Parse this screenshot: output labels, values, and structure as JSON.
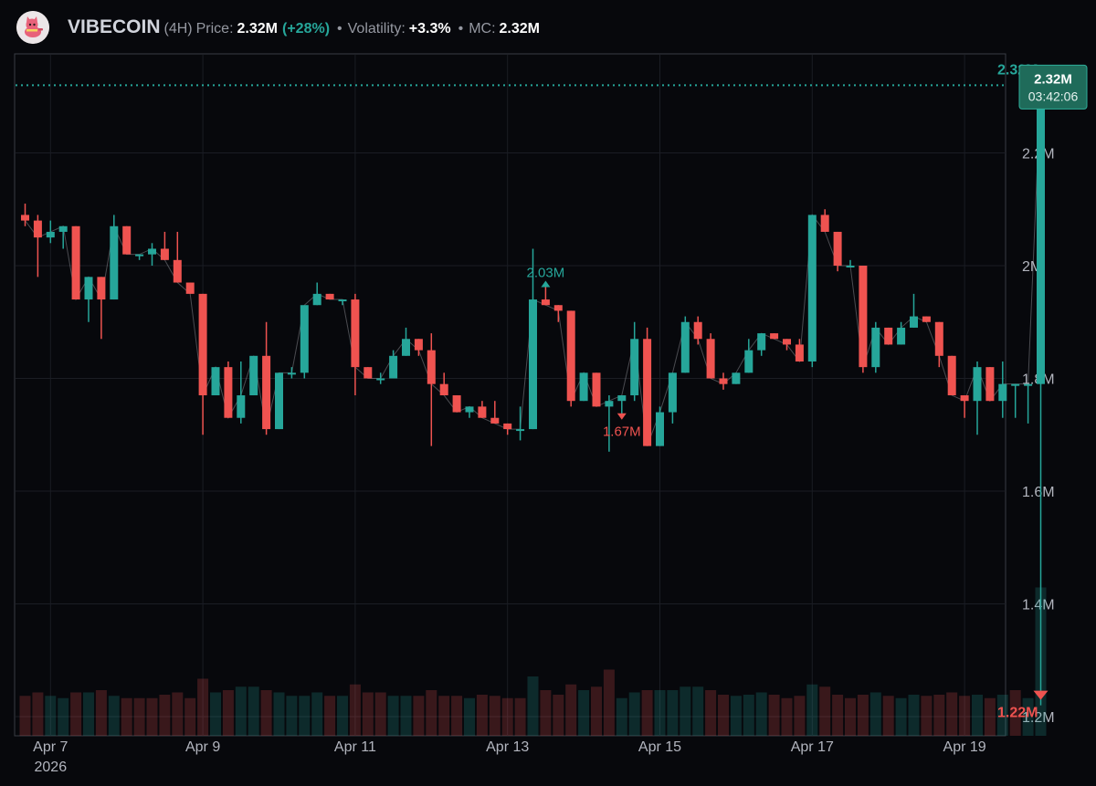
{
  "header": {
    "name": "VIBECOIN",
    "interval": "(4H)",
    "price_label": "Price:",
    "price_value": "2.32M",
    "change": "(+28%)",
    "volatility_label": "Volatility:",
    "volatility_value": "+3.3%",
    "mc_label": "MC:",
    "mc_value": "2.32M",
    "avatar_icon": "cat-mascot-icon",
    "separator": "•"
  },
  "colors": {
    "up": "#26a69a",
    "down": "#ef5350",
    "background": "#07080c",
    "grid": "#1b1d24",
    "axis_text": "#b2b5be",
    "badge_bg": "#1f6b5a"
  },
  "chart_data": {
    "type": "candlestick",
    "interval": "4H",
    "y_ticks": [
      {
        "value": 2200000,
        "label": "2.2M"
      },
      {
        "value": 2000000,
        "label": "2M"
      },
      {
        "value": 1800000,
        "label": "1.8M"
      },
      {
        "value": 1600000,
        "label": "1.6M"
      },
      {
        "value": 1400000,
        "label": "1.4M"
      },
      {
        "value": 1200000,
        "label": "1.2M"
      }
    ],
    "ylim": [
      1170000,
      2380000
    ],
    "x_ticks": [
      {
        "label": "Apr 7",
        "sublabel": "2026",
        "date": "2026-04-07"
      },
      {
        "label": "Apr 9",
        "sublabel": "",
        "date": "2026-04-09"
      },
      {
        "label": "Apr 11",
        "sublabel": "",
        "date": "2026-04-11"
      },
      {
        "label": "Apr 13",
        "sublabel": "",
        "date": "2026-04-13"
      },
      {
        "label": "Apr 15",
        "sublabel": "",
        "date": "2026-04-15"
      },
      {
        "label": "Apr 17",
        "sublabel": "",
        "date": "2026-04-17"
      },
      {
        "label": "Apr 19",
        "sublabel": "",
        "date": "2026-04-19"
      }
    ],
    "first_candle_time": "2026-04-06T16:00",
    "grid": true,
    "last_price": {
      "label": "2.32M",
      "countdown": "03:42:06",
      "value": 2320000
    },
    "annotations": [
      {
        "label": "2.03M",
        "type": "high",
        "candle": 41
      },
      {
        "label": "1.67M",
        "type": "low",
        "candle": 47
      },
      {
        "label": "2.32M",
        "type": "current-high",
        "candle": 80
      },
      {
        "label": "1.22M",
        "type": "current-low",
        "candle": 80
      }
    ],
    "candles": [
      [
        2.09,
        2.11,
        2.07,
        2.08
      ],
      [
        2.08,
        2.09,
        1.98,
        2.05
      ],
      [
        2.05,
        2.08,
        2.04,
        2.06
      ],
      [
        2.06,
        2.07,
        2.03,
        2.07
      ],
      [
        2.07,
        2.07,
        1.94,
        1.94
      ],
      [
        1.94,
        1.98,
        1.9,
        1.98
      ],
      [
        1.98,
        1.98,
        1.87,
        1.94
      ],
      [
        1.94,
        2.09,
        1.94,
        2.07
      ],
      [
        2.07,
        2.07,
        2.02,
        2.02
      ],
      [
        2.02,
        2.02,
        2.01,
        2.02
      ],
      [
        2.02,
        2.04,
        2.0,
        2.03
      ],
      [
        2.03,
        2.06,
        2.01,
        2.01
      ],
      [
        2.01,
        2.06,
        1.98,
        1.97
      ],
      [
        1.97,
        1.97,
        1.96,
        1.95
      ],
      [
        1.95,
        1.95,
        1.7,
        1.77
      ],
      [
        1.77,
        1.82,
        1.77,
        1.82
      ],
      [
        1.82,
        1.83,
        1.73,
        1.73
      ],
      [
        1.73,
        1.83,
        1.72,
        1.77
      ],
      [
        1.77,
        1.84,
        1.77,
        1.84
      ],
      [
        1.84,
        1.9,
        1.7,
        1.71
      ],
      [
        1.71,
        1.81,
        1.71,
        1.81
      ],
      [
        1.81,
        1.82,
        1.8,
        1.81
      ],
      [
        1.81,
        1.83,
        1.8,
        1.93
      ],
      [
        1.93,
        1.97,
        1.93,
        1.95
      ],
      [
        1.95,
        1.95,
        1.94,
        1.94
      ],
      [
        1.94,
        1.94,
        1.93,
        1.94
      ],
      [
        1.94,
        1.95,
        1.77,
        1.82
      ],
      [
        1.82,
        1.82,
        1.8,
        1.8
      ],
      [
        1.8,
        1.81,
        1.79,
        1.8
      ],
      [
        1.8,
        1.85,
        1.8,
        1.84
      ],
      [
        1.84,
        1.89,
        1.84,
        1.87
      ],
      [
        1.87,
        1.87,
        1.84,
        1.85
      ],
      [
        1.85,
        1.88,
        1.68,
        1.79
      ],
      [
        1.79,
        1.81,
        1.77,
        1.77
      ],
      [
        1.77,
        1.77,
        1.74,
        1.74
      ],
      [
        1.74,
        1.75,
        1.73,
        1.75
      ],
      [
        1.75,
        1.76,
        1.73,
        1.73
      ],
      [
        1.73,
        1.76,
        1.72,
        1.72
      ],
      [
        1.72,
        1.72,
        1.7,
        1.71
      ],
      [
        1.71,
        1.75,
        1.69,
        1.71
      ],
      [
        1.71,
        2.03,
        1.71,
        1.94
      ],
      [
        1.94,
        1.97,
        1.93,
        1.93
      ],
      [
        1.93,
        1.93,
        1.9,
        1.92
      ],
      [
        1.92,
        1.92,
        1.75,
        1.76
      ],
      [
        1.76,
        1.81,
        1.76,
        1.81
      ],
      [
        1.81,
        1.81,
        1.75,
        1.75
      ],
      [
        1.75,
        1.77,
        1.67,
        1.76
      ],
      [
        1.76,
        1.77,
        1.73,
        1.77
      ],
      [
        1.77,
        1.9,
        1.76,
        1.87
      ],
      [
        1.87,
        1.89,
        1.68,
        1.68
      ],
      [
        1.68,
        1.75,
        1.68,
        1.74
      ],
      [
        1.74,
        1.81,
        1.72,
        1.81
      ],
      [
        1.81,
        1.91,
        1.81,
        1.9
      ],
      [
        1.9,
        1.91,
        1.86,
        1.87
      ],
      [
        1.87,
        1.88,
        1.8,
        1.8
      ],
      [
        1.8,
        1.81,
        1.78,
        1.79
      ],
      [
        1.79,
        1.81,
        1.79,
        1.81
      ],
      [
        1.81,
        1.87,
        1.81,
        1.85
      ],
      [
        1.85,
        1.88,
        1.84,
        1.88
      ],
      [
        1.88,
        1.88,
        1.87,
        1.87
      ],
      [
        1.87,
        1.87,
        1.85,
        1.86
      ],
      [
        1.86,
        1.87,
        1.83,
        1.83
      ],
      [
        1.83,
        2.09,
        1.82,
        2.09
      ],
      [
        2.09,
        2.1,
        2.06,
        2.06
      ],
      [
        2.06,
        2.06,
        1.99,
        2.0
      ],
      [
        2.0,
        2.01,
        2.0,
        2.0
      ],
      [
        2.0,
        2.0,
        1.81,
        1.82
      ],
      [
        1.82,
        1.9,
        1.81,
        1.89
      ],
      [
        1.89,
        1.89,
        1.86,
        1.86
      ],
      [
        1.86,
        1.9,
        1.86,
        1.89
      ],
      [
        1.89,
        1.95,
        1.89,
        1.91
      ],
      [
        1.91,
        1.91,
        1.9,
        1.9
      ],
      [
        1.9,
        1.9,
        1.82,
        1.84
      ],
      [
        1.84,
        1.84,
        1.77,
        1.77
      ],
      [
        1.77,
        1.77,
        1.73,
        1.76
      ],
      [
        1.76,
        1.83,
        1.7,
        1.82
      ],
      [
        1.82,
        1.82,
        1.76,
        1.76
      ],
      [
        1.76,
        1.83,
        1.73,
        1.79
      ],
      [
        1.79,
        1.79,
        1.73,
        1.79
      ],
      [
        1.79,
        1.79,
        1.72,
        1.79
      ],
      [
        1.79,
        2.32,
        1.22,
        2.32
      ]
    ],
    "volume": [
      [
        0.035,
        0
      ],
      [
        0.038,
        0
      ],
      [
        0.035,
        1
      ],
      [
        0.033,
        1
      ],
      [
        0.038,
        0
      ],
      [
        0.038,
        1
      ],
      [
        0.04,
        0
      ],
      [
        0.035,
        1
      ],
      [
        0.033,
        0
      ],
      [
        0.033,
        0
      ],
      [
        0.033,
        0
      ],
      [
        0.036,
        0
      ],
      [
        0.038,
        0
      ],
      [
        0.033,
        0
      ],
      [
        0.05,
        0
      ],
      [
        0.038,
        1
      ],
      [
        0.04,
        0
      ],
      [
        0.043,
        1
      ],
      [
        0.043,
        1
      ],
      [
        0.04,
        0
      ],
      [
        0.038,
        1
      ],
      [
        0.035,
        1
      ],
      [
        0.035,
        1
      ],
      [
        0.038,
        1
      ],
      [
        0.035,
        0
      ],
      [
        0.035,
        1
      ],
      [
        0.045,
        0
      ],
      [
        0.038,
        0
      ],
      [
        0.038,
        0
      ],
      [
        0.035,
        1
      ],
      [
        0.035,
        1
      ],
      [
        0.035,
        0
      ],
      [
        0.04,
        0
      ],
      [
        0.035,
        0
      ],
      [
        0.035,
        0
      ],
      [
        0.033,
        1
      ],
      [
        0.036,
        0
      ],
      [
        0.035,
        0
      ],
      [
        0.033,
        0
      ],
      [
        0.033,
        0
      ],
      [
        0.052,
        1
      ],
      [
        0.04,
        0
      ],
      [
        0.036,
        0
      ],
      [
        0.045,
        0
      ],
      [
        0.04,
        1
      ],
      [
        0.043,
        0
      ],
      [
        0.058,
        0
      ],
      [
        0.033,
        1
      ],
      [
        0.038,
        1
      ],
      [
        0.04,
        0
      ],
      [
        0.04,
        1
      ],
      [
        0.04,
        1
      ],
      [
        0.043,
        1
      ],
      [
        0.043,
        1
      ],
      [
        0.04,
        0
      ],
      [
        0.036,
        0
      ],
      [
        0.035,
        1
      ],
      [
        0.036,
        1
      ],
      [
        0.038,
        1
      ],
      [
        0.036,
        0
      ],
      [
        0.033,
        0
      ],
      [
        0.035,
        0
      ],
      [
        0.045,
        1
      ],
      [
        0.043,
        0
      ],
      [
        0.036,
        0
      ],
      [
        0.033,
        0
      ],
      [
        0.036,
        0
      ],
      [
        0.038,
        1
      ],
      [
        0.035,
        0
      ],
      [
        0.033,
        1
      ],
      [
        0.036,
        1
      ],
      [
        0.035,
        0
      ],
      [
        0.036,
        0
      ],
      [
        0.038,
        0
      ],
      [
        0.035,
        0
      ],
      [
        0.036,
        1
      ],
      [
        0.033,
        0
      ],
      [
        0.036,
        1
      ],
      [
        0.04,
        0
      ],
      [
        0.033,
        1
      ],
      [
        0.13,
        1
      ]
    ]
  }
}
